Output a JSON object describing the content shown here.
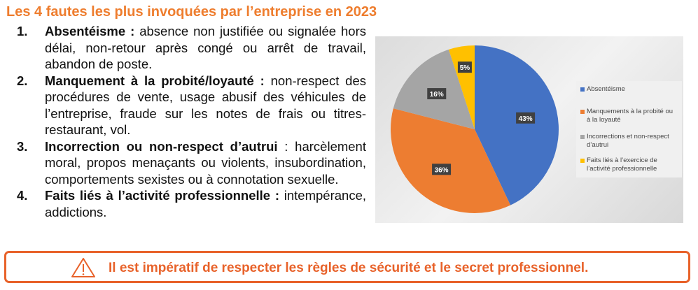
{
  "title": "Les 4 fautes les plus invoquées par l’entreprise en 2023",
  "items": [
    {
      "num": "1.",
      "head": "Absentéisme :",
      "text": " absence non justifiée ou signalée hors délai, non-retour après congé ou arrêt de travail, abandon de poste."
    },
    {
      "num": "2.",
      "head": "Manquement à la probité/loyauté :",
      "text": " non-respect des procédures de vente, usage abusif des véhicules de l’entreprise, fraude sur les notes de frais ou titres-restaurant, vol."
    },
    {
      "num": "3.",
      "head": "Incorrection ou non-respect d’autrui",
      "text": " : harcèlement moral, propos menaçants ou violents, insubordination, comportements sexistes ou à connotation sexuelle."
    },
    {
      "num": "4.",
      "head": "Faits liés à l’activité professionnelle :",
      "text": " intempérance, addictions."
    }
  ],
  "chart_data": {
    "type": "pie",
    "categories": [
      "Absentéisme",
      "Manquements à la probité ou à la loyauté",
      "Incorrections et non-respect d’autrui",
      "Faits liés à l’exercice de l’activité professionnelle"
    ],
    "values": [
      43,
      36,
      16,
      5
    ],
    "labels": [
      "43%",
      "36%",
      "16%",
      "5%"
    ],
    "colors": [
      "#4472C4",
      "#ED7D31",
      "#A5A5A5",
      "#FFC000"
    ],
    "legend_position": "right"
  },
  "banner": {
    "text": "Il est impératif de respecter les règles de sécurité et le secret professionnel.",
    "icon": "warning-icon"
  }
}
